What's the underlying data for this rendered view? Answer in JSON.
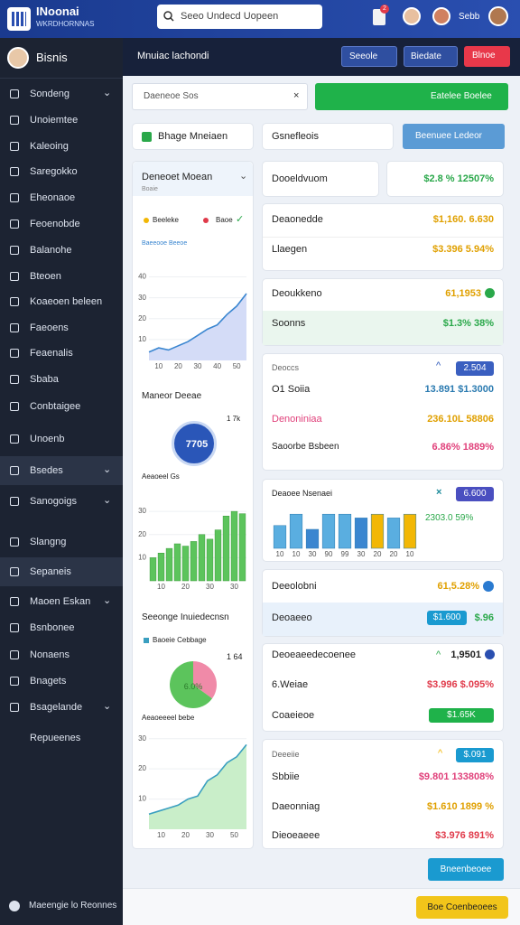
{
  "header": {
    "brand": "INoonai",
    "brand_sub": "WKRDHORNNAS",
    "search": "Seeo Undecd Uopeen",
    "badge": "2",
    "user": "Sebb"
  },
  "sidebar": {
    "title": "Bisnis",
    "items": [
      "Sondeng",
      "Unoiemtee",
      "Kaleoing",
      "Saregokko",
      "Eheonaoe",
      "Feoenobde",
      "Balanohe",
      "Bteoen",
      "Koaeoen beleen",
      "Faeoens",
      "Feaenalis",
      "Sbaba",
      "Conbtaigee",
      "Unoenb",
      "Bsedes",
      "Sanogoigs",
      "Slangng",
      "Sepaneis",
      "Maoen Eskan",
      "Bsnbonee",
      "Nonaens",
      "Bnagets",
      "Bsagelande",
      "Repueenes"
    ],
    "footer": "Maeengie lo Reonnes"
  },
  "topbar": {
    "title": "Mnuiac lachondi",
    "buttons": [
      "Seeole",
      "Biedate",
      "Blnoe"
    ]
  },
  "filter": {
    "placeholder": "Daeneoe Sos",
    "action": "Eatelee Boelee"
  },
  "left": {
    "card_title": "Bhage Mneiaen",
    "trend": {
      "title": "Deneoet Moean",
      "subtitle": "Boaie",
      "legend": [
        "Beeleke",
        "Baoe"
      ],
      "note": "Baeeooe Beeoe",
      "chart": {
        "type": "line",
        "values": [
          4,
          6,
          5,
          7,
          9,
          12,
          15,
          17,
          22,
          26,
          32
        ],
        "ylim": [
          0,
          45
        ],
        "yticks": [
          10,
          20,
          30,
          40
        ],
        "xticks": [
          "10",
          "20",
          "30",
          "40",
          "50"
        ],
        "color": "#3a86d0"
      }
    },
    "donut": {
      "title": "Maneor Deeae",
      "badge": "1 7k",
      "center": "7705",
      "caption": "Aeaoeel Gs",
      "chart": {
        "type": "bar",
        "values": [
          10,
          12,
          14,
          16,
          15,
          17,
          20,
          18,
          22,
          28,
          30,
          29
        ],
        "ylim": [
          0,
          32
        ],
        "yticks": [
          10,
          20,
          30
        ],
        "xticks": [
          "10",
          "20",
          "30",
          "30"
        ],
        "color": "#5cc45c"
      }
    },
    "pie": {
      "title": "Seeonge Inuiedecnsn",
      "legend": "Baoeie Cebbage",
      "badge": "1 64",
      "center": "6.0%",
      "caption": "Aeaoeeeel bebe",
      "slices": [
        {
          "value": 35,
          "color": "#f08aa8"
        },
        {
          "value": 65,
          "color": "#5cc45c"
        }
      ],
      "chart": {
        "type": "area",
        "values": [
          5,
          6,
          7,
          8,
          10,
          11,
          16,
          18,
          22,
          24,
          28
        ],
        "ylim": [
          0,
          32
        ],
        "yticks": [
          10,
          20,
          30
        ],
        "xticks": [
          "10",
          "20",
          "30",
          "50"
        ],
        "color": "#3a9fc0"
      }
    }
  },
  "right": {
    "tab": "Gsnefleois",
    "tab_action": "Beenuee Ledeor",
    "a": {
      "label": "Dooeldvuom",
      "value": "$2.8 % 12507%"
    },
    "b": [
      {
        "label": "Deaonedde",
        "value": "$1,160. 6.630"
      },
      {
        "label": "Llaegen",
        "value": "$3.396 5.94%"
      }
    ],
    "c": [
      {
        "label": "Deoukkeno",
        "value": "61,1953"
      },
      {
        "label": "Soonns",
        "value": "$1.3% 38%"
      }
    ],
    "d": {
      "title": "Deoccs",
      "badge": "2.504",
      "rows": [
        {
          "label": "O1 Soiia",
          "value": "13.891 $1.3000"
        },
        {
          "label": "Denoniniaa",
          "value": "236.10L 58806"
        },
        {
          "label": "Saoorbe Bsbeen",
          "value": "6.86% 1889%"
        }
      ]
    },
    "e": {
      "title": "Deaoee Nsenaei",
      "badge": "6.600",
      "value": "2303.0 59%",
      "chart": {
        "type": "bar",
        "values": [
          6,
          9,
          5,
          9,
          9,
          8,
          9,
          8,
          9
        ],
        "colors": [
          "#5aaee0",
          "#5aaee0",
          "#3a86d0",
          "#5aaee0",
          "#5aaee0",
          "#3a86d0",
          "#f2b705",
          "#5aaee0",
          "#f2b705"
        ],
        "ylim": [
          0,
          10
        ],
        "xticks": [
          "10",
          "10",
          "30",
          "90",
          "99",
          "30",
          "20",
          "20",
          "10"
        ]
      }
    },
    "f": [
      {
        "label": "Deeolobni",
        "value": "61,5.28%"
      },
      {
        "label": "Deoaeeo",
        "badge": "$1.600",
        "value": "$.96"
      }
    ],
    "g": [
      {
        "label": "Deoeaeedecoenee",
        "value": "1,9501"
      },
      {
        "label": "6.Weiae",
        "value": "$3.996 $.095%"
      },
      {
        "label": "Coaeieoe",
        "badge": "$1.65K"
      }
    ],
    "h": {
      "title": "Deeeiie",
      "badge": "$.091",
      "rows": [
        {
          "label": "Sbbiie",
          "value": "$9.801 133808%"
        },
        {
          "label": "Daeonniag",
          "value": "$1.610 1899 %"
        },
        {
          "label": "Dieoeaeee",
          "value": "$3.976 891%"
        }
      ]
    },
    "button": "Bneenbeoee"
  },
  "footer": {
    "button": "Boe Coenbeoees"
  }
}
